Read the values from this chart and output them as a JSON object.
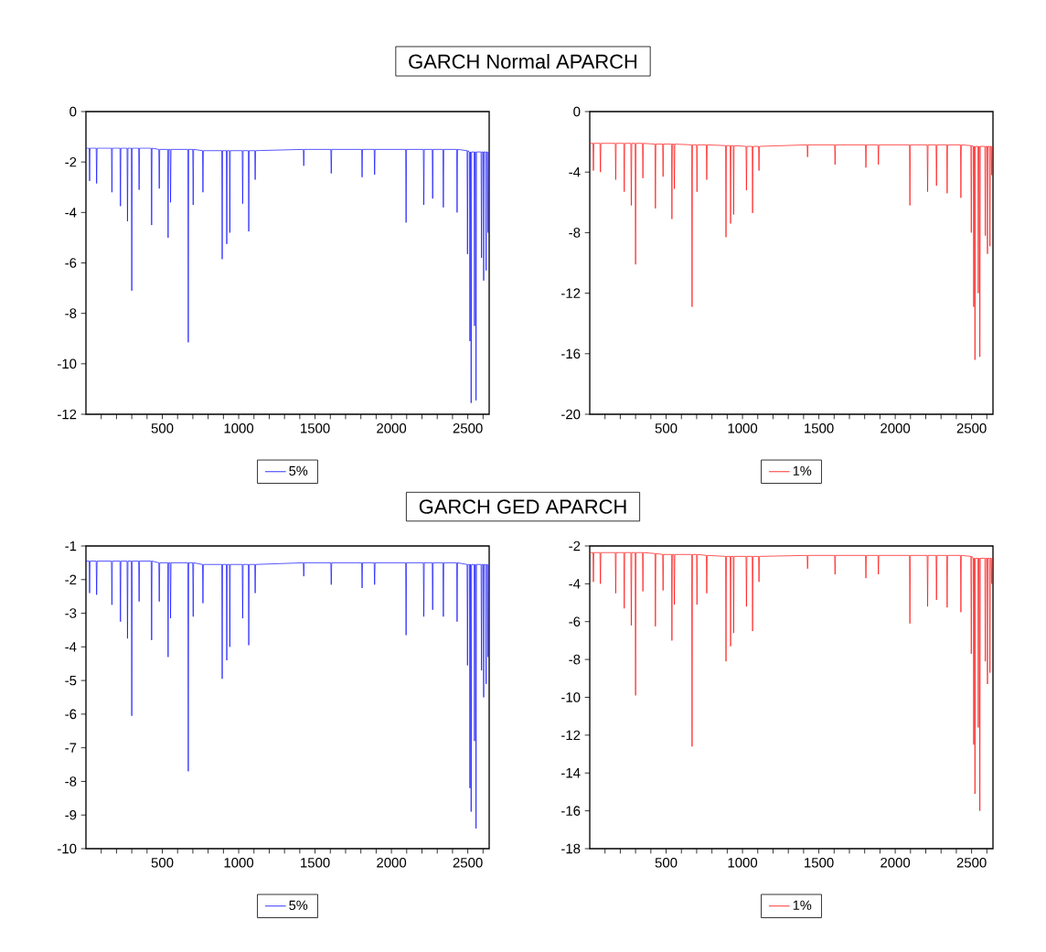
{
  "chart_data": [
    {
      "type": "line",
      "title": "GARCH Normal APARCH",
      "legend": "bottom",
      "xlim": [
        0,
        2640
      ],
      "ylim": [
        -12,
        0
      ],
      "yticks": [
        0,
        -2,
        -4,
        -6,
        -8,
        -10,
        -12
      ],
      "xticks": [
        {
          "value": 100,
          "label": null
        },
        {
          "value": 200,
          "label": null
        },
        {
          "value": 300,
          "label": null
        },
        {
          "value": 400,
          "label": null
        },
        500,
        {
          "value": 600,
          "label": null
        },
        {
          "value": 700,
          "label": null
        },
        {
          "value": 800,
          "label": null
        },
        {
          "value": 900,
          "label": null
        },
        1000,
        {
          "value": 1100,
          "label": null
        },
        {
          "value": 1200,
          "label": null
        },
        {
          "value": 1300,
          "label": null
        },
        {
          "value": 1400,
          "label": null
        },
        1500,
        {
          "value": 1600,
          "label": null
        },
        {
          "value": 1700,
          "label": null
        },
        {
          "value": 1800,
          "label": null
        },
        {
          "value": 1900,
          "label": null
        },
        2000,
        {
          "value": 2100,
          "label": null
        },
        {
          "value": 2200,
          "label": null
        },
        {
          "value": 2300,
          "label": null
        },
        {
          "value": 2400,
          "label": null
        },
        2500,
        {
          "value": 2600,
          "label": null
        }
      ],
      "x": [
        1,
        21,
        24,
        27,
        67,
        70,
        73,
        167,
        170,
        173,
        223,
        226,
        229,
        269,
        272,
        275,
        297,
        300,
        303,
        345,
        348,
        351,
        427,
        430,
        433,
        477,
        480,
        483,
        535,
        538,
        541,
        551,
        554,
        557,
        667,
        670,
        673,
        699,
        702,
        705,
        763,
        766,
        769,
        889,
        892,
        895,
        919,
        922,
        925,
        939,
        942,
        945,
        1023,
        1026,
        1029,
        1063,
        1066,
        1069,
        1105,
        1108,
        1111,
        1423,
        1426,
        1429,
        1603,
        1606,
        1609,
        1805,
        1808,
        1811,
        1887,
        1890,
        1893,
        2093,
        2096,
        2099,
        2209,
        2212,
        2215,
        2267,
        2270,
        2273,
        2337,
        2340,
        2343,
        2427,
        2430,
        2433,
        2495,
        2498,
        2501,
        2511,
        2514,
        2517,
        2519,
        2522,
        2525,
        2541,
        2544,
        2547,
        2551,
        2554,
        2557,
        2587,
        2590,
        2593,
        2601,
        2604,
        2607,
        2617,
        2620,
        2623,
        2629,
        2632,
        2635
      ],
      "series": [
        {
          "name": "5%",
          "color": "#0000ff",
          "values": [
            -1.45,
            -1.45,
            -2.75,
            -1.45,
            -1.45,
            -2.85,
            -1.45,
            -1.45,
            -3.2,
            -1.45,
            -1.45,
            -3.75,
            -1.45,
            -1.45,
            -4.35,
            -1.45,
            -1.45,
            -7.1,
            -1.45,
            -1.45,
            -3.1,
            -1.45,
            -1.45,
            -4.5,
            -1.45,
            -1.5,
            -3.05,
            -1.5,
            -1.5,
            -5.0,
            -1.5,
            -1.5,
            -3.6,
            -1.5,
            -1.5,
            -9.15,
            -1.5,
            -1.5,
            -3.7,
            -1.5,
            -1.55,
            -3.2,
            -1.55,
            -1.55,
            -5.85,
            -1.55,
            -1.55,
            -5.25,
            -1.55,
            -1.55,
            -4.8,
            -1.55,
            -1.55,
            -3.65,
            -1.55,
            -1.55,
            -4.75,
            -1.55,
            -1.55,
            -2.7,
            -1.55,
            -1.5,
            -2.15,
            -1.5,
            -1.5,
            -2.45,
            -1.5,
            -1.5,
            -2.6,
            -1.5,
            -1.5,
            -2.5,
            -1.5,
            -1.5,
            -4.4,
            -1.5,
            -1.5,
            -3.7,
            -1.5,
            -1.5,
            -3.45,
            -1.5,
            -1.5,
            -3.8,
            -1.5,
            -1.5,
            -4.0,
            -1.5,
            -1.55,
            -5.65,
            -1.55,
            -1.6,
            -9.1,
            -1.6,
            -1.6,
            -11.55,
            -1.6,
            -1.6,
            -8.5,
            -1.6,
            -1.6,
            -11.45,
            -1.6,
            -1.6,
            -5.8,
            -1.6,
            -1.6,
            -6.7,
            -1.6,
            -1.6,
            -6.3,
            -1.6,
            -1.6,
            -4.8,
            -1.6
          ]
        }
      ]
    },
    {
      "type": "line",
      "legend": "bottom",
      "xlim": [
        0,
        2640
      ],
      "ylim": [
        -20,
        0
      ],
      "yticks": [
        0,
        -4,
        -8,
        -12,
        -16,
        -20
      ],
      "xticks": [
        {
          "value": 100,
          "label": null
        },
        {
          "value": 200,
          "label": null
        },
        {
          "value": 300,
          "label": null
        },
        {
          "value": 400,
          "label": null
        },
        500,
        {
          "value": 600,
          "label": null
        },
        {
          "value": 700,
          "label": null
        },
        {
          "value": 800,
          "label": null
        },
        {
          "value": 900,
          "label": null
        },
        1000,
        {
          "value": 1100,
          "label": null
        },
        {
          "value": 1200,
          "label": null
        },
        {
          "value": 1300,
          "label": null
        },
        {
          "value": 1400,
          "label": null
        },
        1500,
        {
          "value": 1600,
          "label": null
        },
        {
          "value": 1700,
          "label": null
        },
        {
          "value": 1800,
          "label": null
        },
        {
          "value": 1900,
          "label": null
        },
        2000,
        {
          "value": 2100,
          "label": null
        },
        {
          "value": 2200,
          "label": null
        },
        {
          "value": 2300,
          "label": null
        },
        {
          "value": 2400,
          "label": null
        },
        2500,
        {
          "value": 2600,
          "label": null
        }
      ],
      "x": [
        1,
        21,
        24,
        27,
        67,
        70,
        73,
        167,
        170,
        173,
        223,
        226,
        229,
        269,
        272,
        275,
        297,
        300,
        303,
        345,
        348,
        351,
        427,
        430,
        433,
        477,
        480,
        483,
        535,
        538,
        541,
        551,
        554,
        557,
        667,
        670,
        673,
        699,
        702,
        705,
        763,
        766,
        769,
        889,
        892,
        895,
        919,
        922,
        925,
        939,
        942,
        945,
        1023,
        1026,
        1029,
        1063,
        1066,
        1069,
        1105,
        1108,
        1111,
        1423,
        1426,
        1429,
        1603,
        1606,
        1609,
        1805,
        1808,
        1811,
        1887,
        1890,
        1893,
        2093,
        2096,
        2099,
        2209,
        2212,
        2215,
        2267,
        2270,
        2273,
        2337,
        2340,
        2343,
        2427,
        2430,
        2433,
        2495,
        2498,
        2501,
        2511,
        2514,
        2517,
        2519,
        2522,
        2525,
        2541,
        2544,
        2547,
        2551,
        2554,
        2557,
        2587,
        2590,
        2593,
        2601,
        2604,
        2607,
        2617,
        2620,
        2623,
        2629,
        2632,
        2635
      ],
      "series": [
        {
          "name": "1%",
          "color": "#ff0000",
          "values": [
            -2.1,
            -2.1,
            -3.9,
            -2.1,
            -2.1,
            -4.0,
            -2.1,
            -2.1,
            -4.5,
            -2.1,
            -2.1,
            -5.3,
            -2.1,
            -2.1,
            -6.2,
            -2.1,
            -2.1,
            -10.1,
            -2.1,
            -2.1,
            -4.4,
            -2.1,
            -2.15,
            -6.4,
            -2.15,
            -2.15,
            -4.3,
            -2.15,
            -2.15,
            -7.1,
            -2.15,
            -2.15,
            -5.1,
            -2.15,
            -2.2,
            -12.9,
            -2.2,
            -2.2,
            -5.3,
            -2.2,
            -2.2,
            -4.5,
            -2.2,
            -2.25,
            -8.3,
            -2.25,
            -2.25,
            -7.4,
            -2.25,
            -2.25,
            -6.8,
            -2.25,
            -2.3,
            -5.2,
            -2.3,
            -2.3,
            -6.7,
            -2.3,
            -2.3,
            -3.9,
            -2.3,
            -2.2,
            -3.0,
            -2.2,
            -2.2,
            -3.5,
            -2.2,
            -2.2,
            -3.7,
            -2.2,
            -2.2,
            -3.5,
            -2.2,
            -2.2,
            -6.2,
            -2.2,
            -2.2,
            -5.3,
            -2.2,
            -2.2,
            -4.9,
            -2.2,
            -2.2,
            -5.4,
            -2.2,
            -2.2,
            -5.7,
            -2.2,
            -2.25,
            -8.0,
            -2.25,
            -2.3,
            -12.9,
            -2.3,
            -2.3,
            -16.4,
            -2.3,
            -2.3,
            -12.0,
            -2.3,
            -2.3,
            -16.2,
            -2.3,
            -2.3,
            -8.2,
            -2.3,
            -2.3,
            -9.4,
            -2.3,
            -2.3,
            -8.9,
            -2.3,
            -2.3,
            -4.2,
            -2.3
          ]
        }
      ]
    },
    {
      "type": "line",
      "title": "GARCH GED APARCH",
      "legend": "bottom",
      "xlim": [
        0,
        2640
      ],
      "ylim": [
        -10,
        -1
      ],
      "yticks": [
        -1,
        -2,
        -3,
        -4,
        -5,
        -6,
        -7,
        -8,
        -9,
        -10
      ],
      "xticks": [
        {
          "value": 100,
          "label": null
        },
        {
          "value": 200,
          "label": null
        },
        {
          "value": 300,
          "label": null
        },
        {
          "value": 400,
          "label": null
        },
        500,
        {
          "value": 600,
          "label": null
        },
        {
          "value": 700,
          "label": null
        },
        {
          "value": 800,
          "label": null
        },
        {
          "value": 900,
          "label": null
        },
        1000,
        {
          "value": 1100,
          "label": null
        },
        {
          "value": 1200,
          "label": null
        },
        {
          "value": 1300,
          "label": null
        },
        {
          "value": 1400,
          "label": null
        },
        1500,
        {
          "value": 1600,
          "label": null
        },
        {
          "value": 1700,
          "label": null
        },
        {
          "value": 1800,
          "label": null
        },
        {
          "value": 1900,
          "label": null
        },
        2000,
        {
          "value": 2100,
          "label": null
        },
        {
          "value": 2200,
          "label": null
        },
        {
          "value": 2300,
          "label": null
        },
        {
          "value": 2400,
          "label": null
        },
        2500,
        {
          "value": 2600,
          "label": null
        }
      ],
      "x": [
        1,
        21,
        24,
        27,
        67,
        70,
        73,
        167,
        170,
        173,
        223,
        226,
        229,
        269,
        272,
        275,
        297,
        300,
        303,
        345,
        348,
        351,
        427,
        430,
        433,
        477,
        480,
        483,
        535,
        538,
        541,
        551,
        554,
        557,
        667,
        670,
        673,
        699,
        702,
        705,
        763,
        766,
        769,
        889,
        892,
        895,
        919,
        922,
        925,
        939,
        942,
        945,
        1023,
        1026,
        1029,
        1063,
        1066,
        1069,
        1105,
        1108,
        1111,
        1423,
        1426,
        1429,
        1603,
        1606,
        1609,
        1805,
        1808,
        1811,
        1887,
        1890,
        1893,
        2093,
        2096,
        2099,
        2209,
        2212,
        2215,
        2267,
        2270,
        2273,
        2337,
        2340,
        2343,
        2427,
        2430,
        2433,
        2495,
        2498,
        2501,
        2511,
        2514,
        2517,
        2519,
        2522,
        2525,
        2541,
        2544,
        2547,
        2551,
        2554,
        2557,
        2587,
        2590,
        2593,
        2601,
        2604,
        2607,
        2617,
        2620,
        2623,
        2629,
        2632,
        2635
      ],
      "series": [
        {
          "name": "5%",
          "color": "#0000ff",
          "values": [
            -1.45,
            -1.45,
            -2.4,
            -1.45,
            -1.45,
            -2.45,
            -1.45,
            -1.45,
            -2.75,
            -1.45,
            -1.45,
            -3.25,
            -1.45,
            -1.45,
            -3.75,
            -1.45,
            -1.45,
            -6.05,
            -1.45,
            -1.45,
            -2.65,
            -1.45,
            -1.45,
            -3.8,
            -1.45,
            -1.5,
            -2.65,
            -1.5,
            -1.5,
            -4.3,
            -1.5,
            -1.5,
            -3.15,
            -1.5,
            -1.5,
            -7.7,
            -1.5,
            -1.5,
            -3.1,
            -1.5,
            -1.55,
            -2.7,
            -1.55,
            -1.55,
            -4.95,
            -1.55,
            -1.55,
            -4.4,
            -1.55,
            -1.55,
            -4.0,
            -1.55,
            -1.55,
            -3.15,
            -1.55,
            -1.55,
            -3.95,
            -1.55,
            -1.55,
            -2.4,
            -1.55,
            -1.5,
            -1.9,
            -1.5,
            -1.5,
            -2.15,
            -1.5,
            -1.5,
            -2.25,
            -1.5,
            -1.5,
            -2.15,
            -1.5,
            -1.5,
            -3.65,
            -1.5,
            -1.5,
            -3.1,
            -1.5,
            -1.5,
            -2.9,
            -1.5,
            -1.5,
            -3.1,
            -1.5,
            -1.5,
            -3.25,
            -1.5,
            -1.55,
            -4.55,
            -1.55,
            -1.55,
            -8.2,
            -1.55,
            -1.55,
            -8.9,
            -1.55,
            -1.55,
            -6.8,
            -1.55,
            -1.55,
            -9.4,
            -1.55,
            -1.55,
            -4.7,
            -1.55,
            -1.55,
            -5.5,
            -1.55,
            -1.55,
            -5.1,
            -1.55,
            -1.55,
            -4.3,
            -1.55
          ]
        }
      ]
    },
    {
      "type": "line",
      "legend": "bottom",
      "xlim": [
        0,
        2640
      ],
      "ylim": [
        -18,
        -2
      ],
      "yticks": [
        -2,
        -4,
        -6,
        -8,
        -10,
        -12,
        -14,
        -16,
        -18
      ],
      "xticks": [
        {
          "value": 100,
          "label": null
        },
        {
          "value": 200,
          "label": null
        },
        {
          "value": 300,
          "label": null
        },
        {
          "value": 400,
          "label": null
        },
        500,
        {
          "value": 600,
          "label": null
        },
        {
          "value": 700,
          "label": null
        },
        {
          "value": 800,
          "label": null
        },
        {
          "value": 900,
          "label": null
        },
        1000,
        {
          "value": 1100,
          "label": null
        },
        {
          "value": 1200,
          "label": null
        },
        {
          "value": 1300,
          "label": null
        },
        {
          "value": 1400,
          "label": null
        },
        1500,
        {
          "value": 1600,
          "label": null
        },
        {
          "value": 1700,
          "label": null
        },
        {
          "value": 1800,
          "label": null
        },
        {
          "value": 1900,
          "label": null
        },
        2000,
        {
          "value": 2100,
          "label": null
        },
        {
          "value": 2200,
          "label": null
        },
        {
          "value": 2300,
          "label": null
        },
        {
          "value": 2400,
          "label": null
        },
        2500,
        {
          "value": 2600,
          "label": null
        }
      ],
      "x": [
        1,
        21,
        24,
        27,
        67,
        70,
        73,
        167,
        170,
        173,
        223,
        226,
        229,
        269,
        272,
        275,
        297,
        300,
        303,
        345,
        348,
        351,
        427,
        430,
        433,
        477,
        480,
        483,
        535,
        538,
        541,
        551,
        554,
        557,
        667,
        670,
        673,
        699,
        702,
        705,
        763,
        766,
        769,
        889,
        892,
        895,
        919,
        922,
        925,
        939,
        942,
        945,
        1023,
        1026,
        1029,
        1063,
        1066,
        1069,
        1105,
        1108,
        1111,
        1423,
        1426,
        1429,
        1603,
        1606,
        1609,
        1805,
        1808,
        1811,
        1887,
        1890,
        1893,
        2093,
        2096,
        2099,
        2209,
        2212,
        2215,
        2267,
        2270,
        2273,
        2337,
        2340,
        2343,
        2427,
        2430,
        2433,
        2495,
        2498,
        2501,
        2511,
        2514,
        2517,
        2519,
        2522,
        2525,
        2541,
        2544,
        2547,
        2551,
        2554,
        2557,
        2587,
        2590,
        2593,
        2601,
        2604,
        2607,
        2617,
        2620,
        2623,
        2629,
        2632,
        2635
      ],
      "series": [
        {
          "name": "1%",
          "color": "#ff0000",
          "values": [
            -2.35,
            -2.35,
            -3.9,
            -2.35,
            -2.35,
            -4.0,
            -2.35,
            -2.35,
            -4.5,
            -2.35,
            -2.35,
            -5.3,
            -2.35,
            -2.35,
            -6.2,
            -2.35,
            -2.35,
            -9.9,
            -2.35,
            -2.35,
            -4.4,
            -2.35,
            -2.4,
            -6.25,
            -2.4,
            -2.45,
            -4.35,
            -2.45,
            -2.45,
            -7.0,
            -2.45,
            -2.45,
            -5.1,
            -2.45,
            -2.45,
            -12.6,
            -2.45,
            -2.45,
            -5.1,
            -2.45,
            -2.5,
            -4.5,
            -2.5,
            -2.55,
            -8.1,
            -2.55,
            -2.55,
            -7.3,
            -2.55,
            -2.55,
            -6.6,
            -2.55,
            -2.55,
            -5.2,
            -2.55,
            -2.55,
            -6.5,
            -2.55,
            -2.55,
            -3.9,
            -2.55,
            -2.5,
            -3.2,
            -2.5,
            -2.5,
            -3.5,
            -2.5,
            -2.5,
            -3.7,
            -2.5,
            -2.5,
            -3.5,
            -2.5,
            -2.5,
            -6.1,
            -2.5,
            -2.5,
            -5.2,
            -2.5,
            -2.5,
            -4.85,
            -2.5,
            -2.5,
            -5.25,
            -2.5,
            -2.5,
            -5.5,
            -2.5,
            -2.55,
            -7.7,
            -2.55,
            -2.65,
            -12.5,
            -2.65,
            -2.65,
            -15.1,
            -2.65,
            -2.65,
            -11.6,
            -2.65,
            -2.65,
            -16.0,
            -2.65,
            -2.65,
            -8.1,
            -2.65,
            -2.65,
            -9.3,
            -2.65,
            -2.65,
            -8.7,
            -2.65,
            -2.65,
            -4.0,
            -2.65
          ]
        }
      ]
    }
  ]
}
